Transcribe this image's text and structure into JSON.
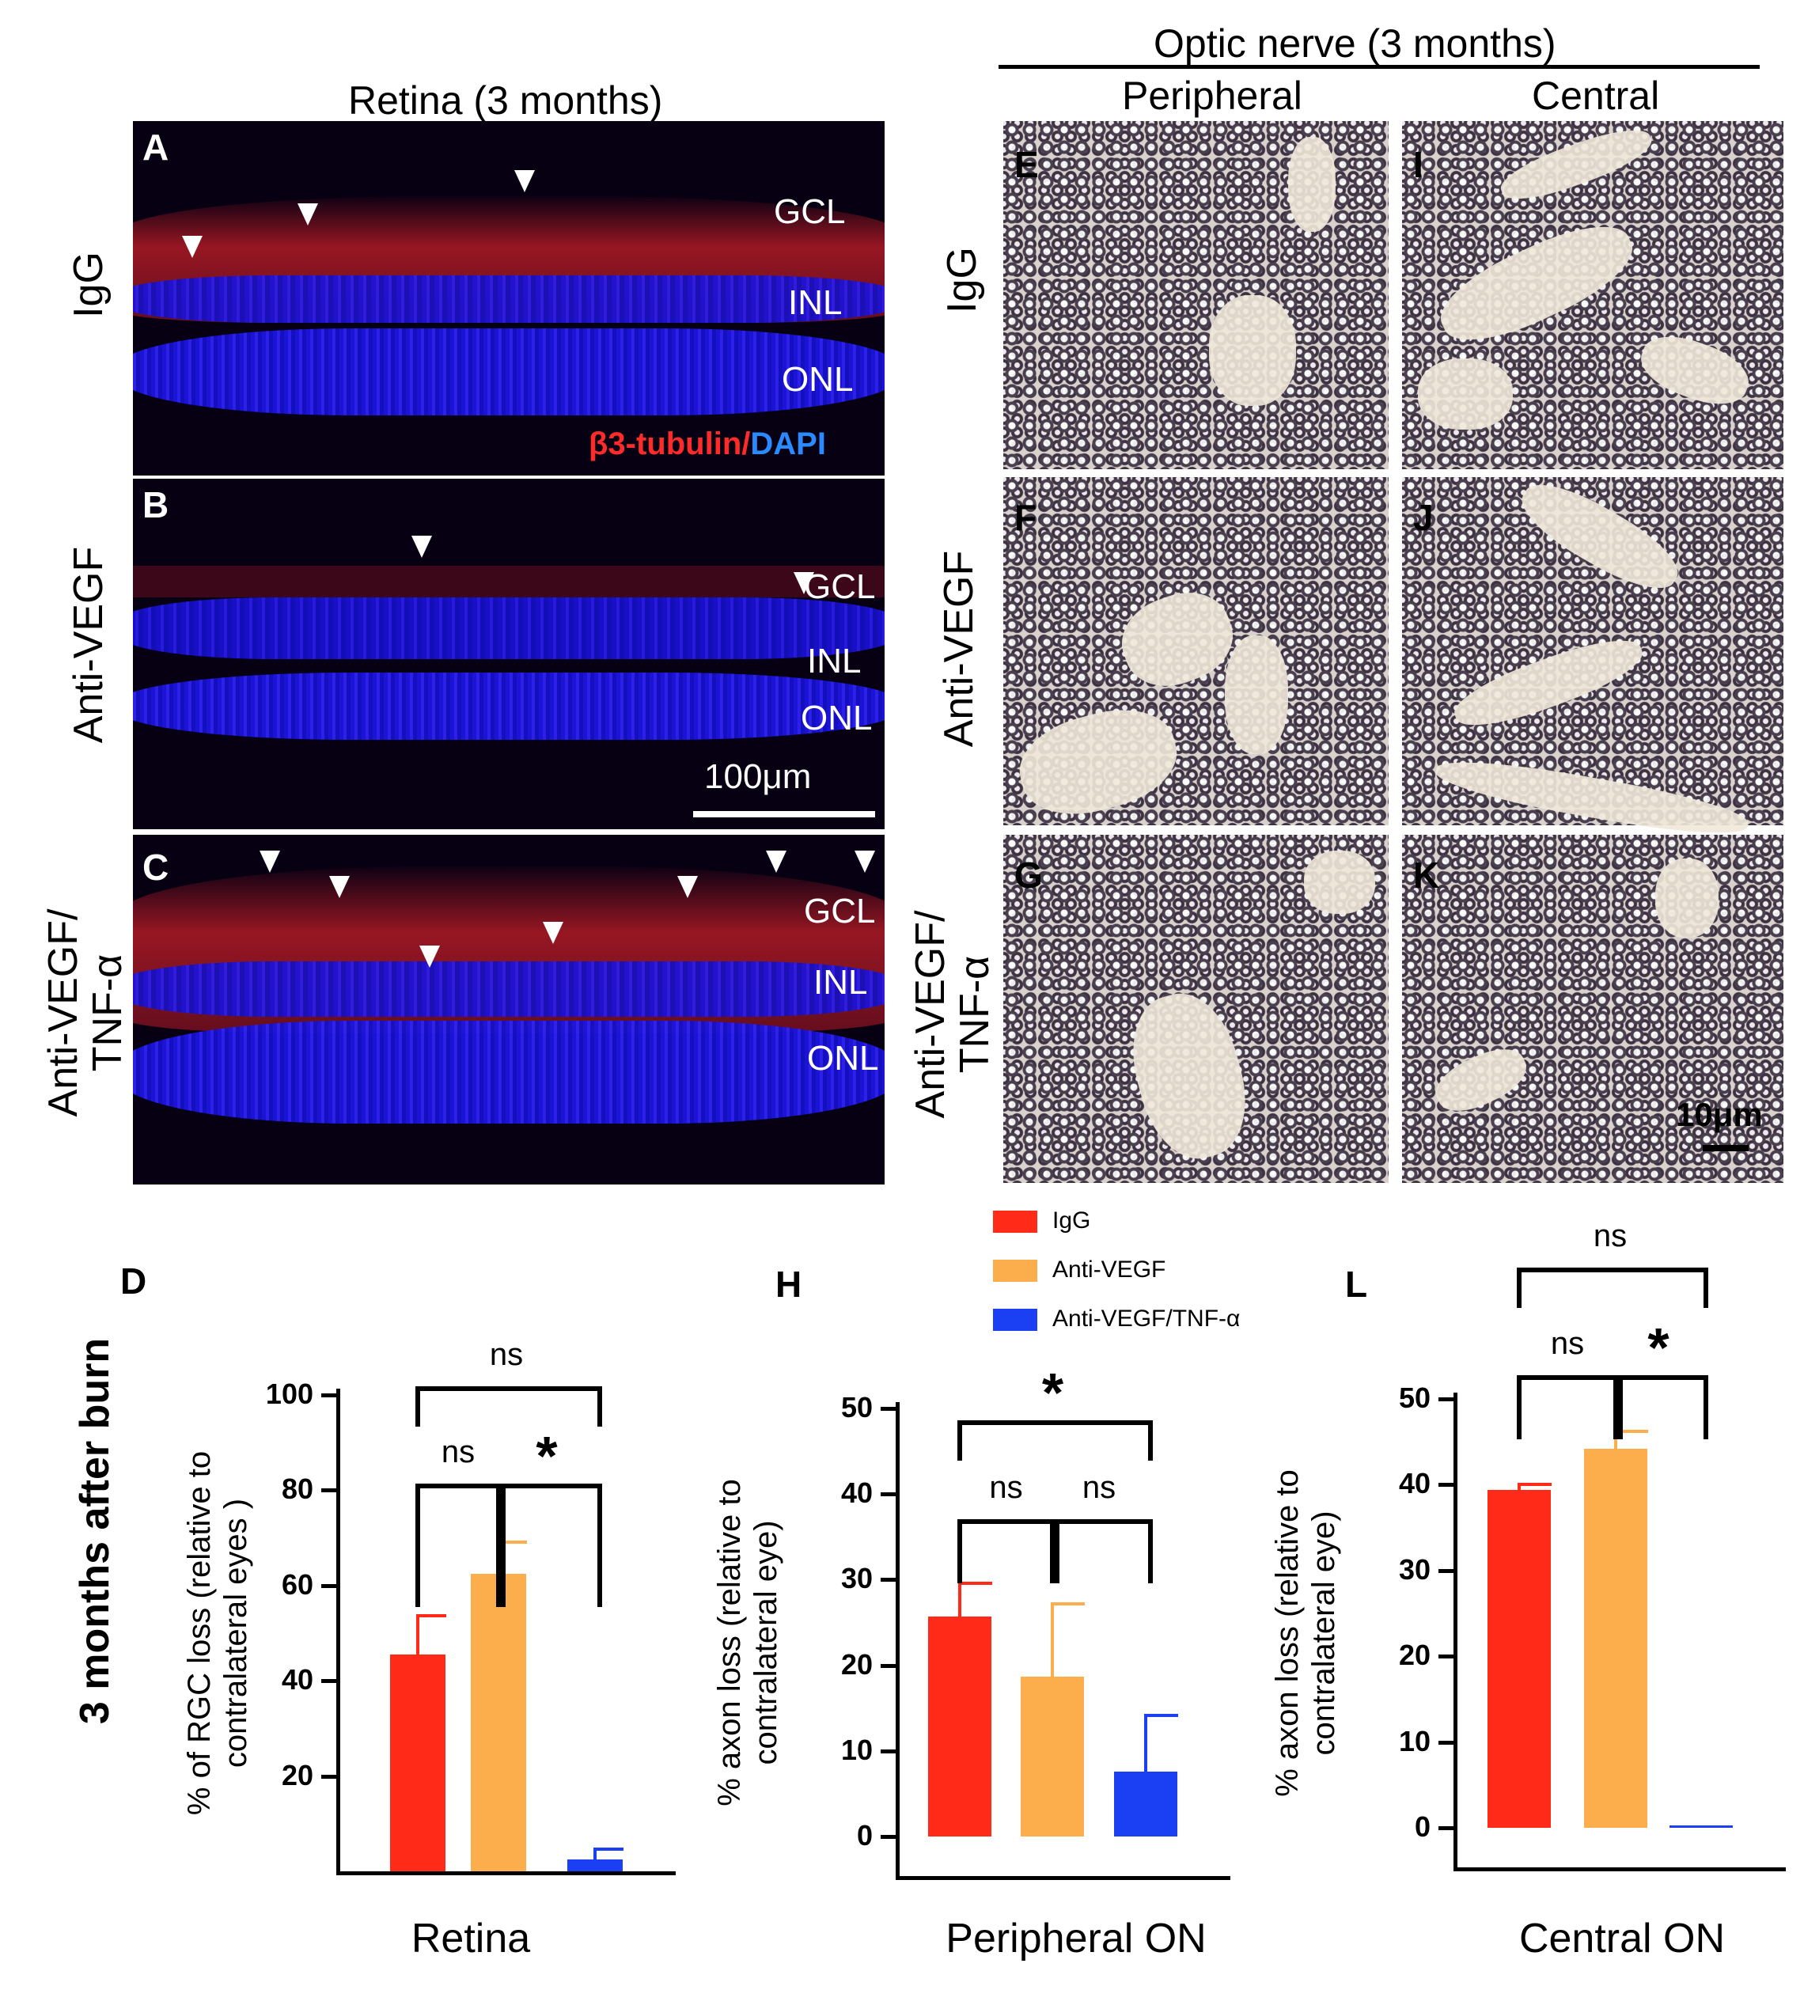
{
  "titles": {
    "retina": "Retina (3 months)",
    "optic": "Optic nerve (3 months)",
    "peripheral": "Peripheral",
    "central": "Central"
  },
  "rows": {
    "igg": "IgG",
    "antivegf": "Anti-VEGF",
    "combo1": "Anti-VEGF/",
    "combo2": "TNF-α"
  },
  "letters": [
    "A",
    "B",
    "C",
    "D",
    "E",
    "F",
    "G",
    "H",
    "I",
    "J",
    "K",
    "L"
  ],
  "layers": {
    "gcl": "GCL",
    "inl": "INL",
    "onl": "ONL"
  },
  "stain": {
    "marker": "β3-tubulin",
    "sep": "/",
    "dapi": "DAPI"
  },
  "scalebars": {
    "retina": "100μm",
    "on": "10μm"
  },
  "side_label": "3 months after burn",
  "colors": {
    "igg": "#ff2a17",
    "antivegf": "#fbae4b",
    "combo": "#1b3ff2"
  },
  "legend": [
    "IgG",
    "Anti-VEGF",
    "Anti-VEGF/TNF-α"
  ],
  "chart_data": [
    {
      "type": "bar",
      "xlabel": "Retina",
      "ylabel": [
        "% of RGC loss (relative to",
        "contralateral  eyes )"
      ],
      "categories": [
        "IgG",
        "Anti-VEGF",
        "Anti-VEGF/TNF-α"
      ],
      "values": [
        45.5,
        62.5,
        2.5
      ],
      "errors": [
        8.5,
        7,
        2.5
      ],
      "ylim": [
        0,
        100
      ],
      "ticks": [
        20,
        40,
        60,
        80,
        100
      ],
      "comparisons": [
        {
          "from": 0,
          "to": 1,
          "label": "ns"
        },
        {
          "from": 1,
          "to": 2,
          "label": "*"
        },
        {
          "from": 0,
          "to": 2,
          "label": "ns"
        }
      ]
    },
    {
      "type": "bar",
      "xlabel": "Peripheral ON",
      "ylabel": [
        "% axon loss (relative to",
        "contralateral eye)"
      ],
      "categories": [
        "IgG",
        "Anti-VEGF",
        "Anti-VEGF/TNF-α"
      ],
      "values": [
        25.7,
        18.7,
        7.6
      ],
      "errors": [
        4.1,
        8.7,
        6.7
      ],
      "ylim": [
        0,
        50
      ],
      "ticks": [
        0,
        10,
        20,
        30,
        40,
        50
      ],
      "comparisons": [
        {
          "from": 0,
          "to": 1,
          "label": "ns"
        },
        {
          "from": 1,
          "to": 2,
          "label": "ns"
        },
        {
          "from": 0,
          "to": 2,
          "label": "*"
        }
      ]
    },
    {
      "type": "bar",
      "xlabel": "Central ON",
      "ylabel": [
        "% axon loss (relative to",
        "contralateral eye)"
      ],
      "categories": [
        "IgG",
        "Anti-VEGF",
        "Anti-VEGF/TNF-α"
      ],
      "values": [
        39.4,
        44.2,
        0.0
      ],
      "errors": [
        0.8,
        2.2,
        0
      ],
      "ylim": [
        0,
        50
      ],
      "ticks": [
        0,
        10,
        20,
        30,
        40,
        50
      ],
      "comparisons": [
        {
          "from": 0,
          "to": 1,
          "label": "ns"
        },
        {
          "from": 1,
          "to": 2,
          "label": "*"
        },
        {
          "from": 0,
          "to": 2,
          "label": "ns"
        }
      ]
    }
  ]
}
